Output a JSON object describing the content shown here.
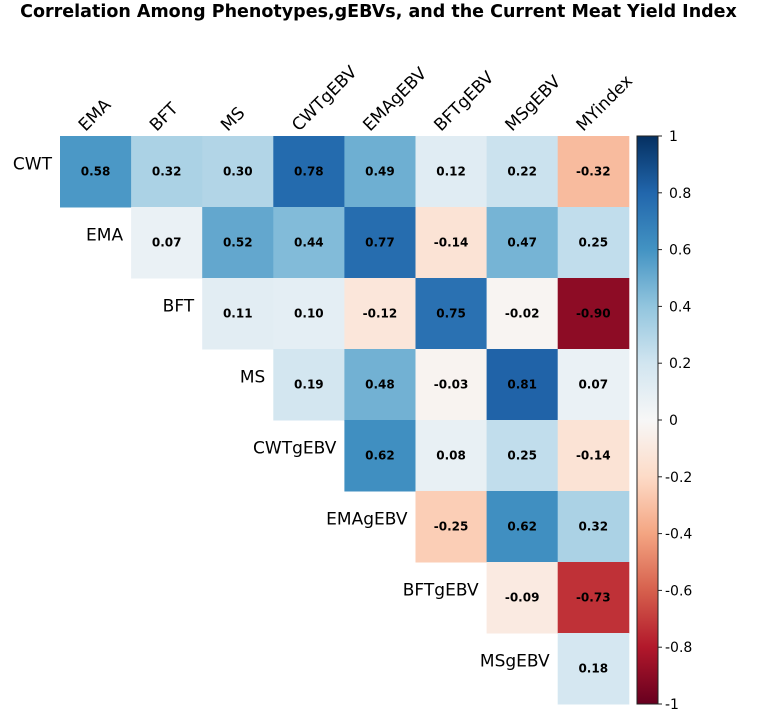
{
  "chart_data": {
    "type": "heatmap",
    "title": "Correlation Among Phenotypes,gEBVs, and the Current Meat Yield Index",
    "row_labels": [
      "CWT",
      "EMA",
      "BFT",
      "MS",
      "CWTgEBV",
      "EMAgEBV",
      "BFTgEBV",
      "MSgEBV"
    ],
    "col_labels": [
      "EMA",
      "BFT",
      "MS",
      "CWTgEBV",
      "EMAgEBV",
      "BFTgEBV",
      "MSgEBV",
      "MYindex"
    ],
    "matrix": [
      [
        0.58,
        0.32,
        0.3,
        0.78,
        0.49,
        0.12,
        0.22,
        -0.32
      ],
      [
        null,
        0.07,
        0.52,
        0.44,
        0.77,
        -0.14,
        0.47,
        0.25
      ],
      [
        null,
        null,
        0.11,
        0.1,
        -0.12,
        0.75,
        -0.02,
        -0.9
      ],
      [
        null,
        null,
        null,
        0.19,
        0.48,
        -0.03,
        0.81,
        0.07
      ],
      [
        null,
        null,
        null,
        null,
        0.62,
        0.08,
        0.25,
        -0.14
      ],
      [
        null,
        null,
        null,
        null,
        null,
        -0.25,
        0.62,
        0.32
      ],
      [
        null,
        null,
        null,
        null,
        null,
        null,
        -0.09,
        -0.73
      ],
      [
        null,
        null,
        null,
        null,
        null,
        null,
        null,
        0.18
      ]
    ],
    "colormap": "RdBu",
    "vmin": -1,
    "vmax": 1,
    "colorbar": {
      "ticks": [
        1,
        0.8,
        0.6,
        0.4,
        0.2,
        0,
        -0.2,
        -0.4,
        -0.6,
        -0.8,
        -1
      ],
      "tick_labels": [
        "1",
        "0.8",
        "0.6",
        "0.4",
        "0.2",
        "0",
        "-0.2",
        "-0.4",
        "-0.6",
        "-0.8",
        "-1"
      ],
      "placement": "right"
    },
    "grid": false,
    "annotations": "values shown in each cell, 2 decimals, bold"
  }
}
